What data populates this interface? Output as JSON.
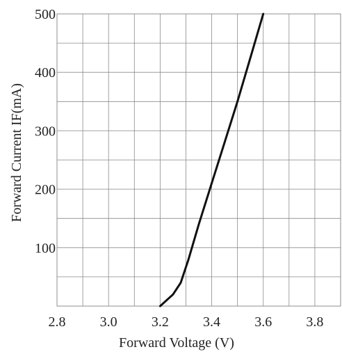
{
  "chart_data": {
    "type": "line",
    "title": "",
    "xlabel": "Forward Voltage  (V)",
    "ylabel": "Forward Current IF(mA)",
    "xlim": [
      2.8,
      3.9
    ],
    "ylim": [
      0,
      500
    ],
    "xticks": [
      2.8,
      3.0,
      3.2,
      3.4,
      3.6,
      3.8
    ],
    "xtick_labels": [
      "2.8",
      "3.0",
      "3.2",
      "3.4",
      "3.6",
      "3.8"
    ],
    "yticks": [
      100,
      200,
      300,
      400,
      500
    ],
    "ytick_labels": [
      "100",
      "200",
      "300",
      "400",
      "500"
    ],
    "x_grid_step": 0.1,
    "y_grid_step": 50,
    "grid": true,
    "series": [
      {
        "x": [
          3.2,
          3.25,
          3.28,
          3.31,
          3.35,
          3.4,
          3.45,
          3.5,
          3.55,
          3.6
        ],
        "y": [
          0,
          20,
          40,
          80,
          140,
          210,
          280,
          350,
          425,
          500
        ]
      }
    ]
  }
}
